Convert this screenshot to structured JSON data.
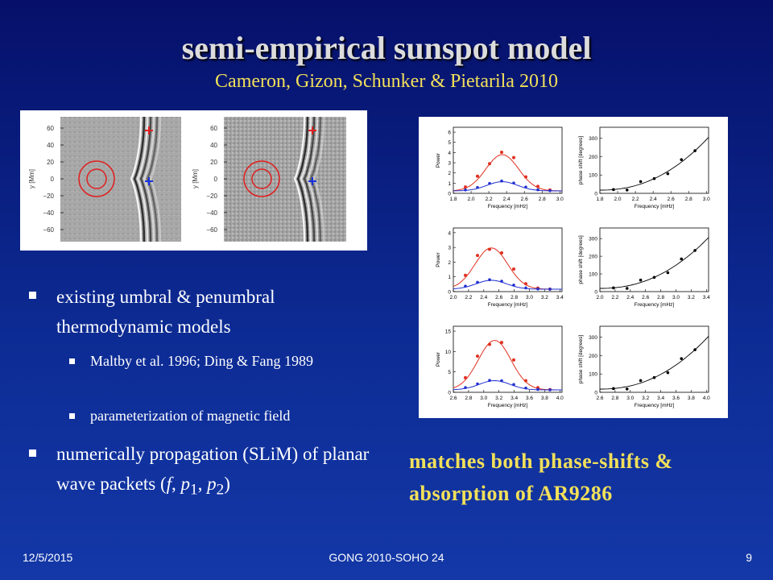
{
  "title": "semi-empirical sunspot model",
  "subtitle": "Cameron, Gizon, Schunker & Pietarila 2010",
  "left_figure": {
    "y_axis_label": "y [Mm]",
    "y_ticks": [
      "60",
      "40",
      "20",
      "0",
      "−20",
      "−40",
      "−60"
    ]
  },
  "bullets": [
    {
      "text": "existing umbral & penumbral thermodynamic models",
      "sub": [
        "Maltby et al. 1996; Ding & Fang 1989",
        "parameterization of magnetic field"
      ]
    },
    {
      "parts": [
        "numerically propagation (SLiM) of planar wave packets (",
        "f",
        ", ",
        "p",
        "1",
        ", ",
        "p",
        "2",
        ")"
      ]
    }
  ],
  "right_figure": {
    "power_label": "Power",
    "frequency_label": "Frequency [mHz]",
    "phase_label": "phase shift [degrees]",
    "rows": [
      {
        "x_ticks": [
          "1.8",
          "2.0",
          "2.2",
          "2.4",
          "2.6",
          "2.8",
          "3.0"
        ],
        "power_ticks": [
          "0",
          "1",
          "2",
          "3",
          "4",
          "5",
          "6"
        ],
        "phase_ticks": [
          "0",
          "100",
          "200",
          "300"
        ]
      },
      {
        "x_ticks": [
          "2.0",
          "2.2",
          "2.4",
          "2.6",
          "2.8",
          "3.0",
          "3.2",
          "3.4"
        ],
        "power_ticks": [
          "0",
          "1",
          "2",
          "3",
          "4"
        ],
        "phase_ticks": [
          "0",
          "100",
          "200",
          "300"
        ]
      },
      {
        "x_ticks": [
          "2.6",
          "2.8",
          "3.0",
          "3.2",
          "3.4",
          "3.6",
          "3.8",
          "4.0"
        ],
        "power_ticks": [
          "0",
          "5",
          "10",
          "15"
        ],
        "phase_ticks": [
          "0",
          "100",
          "200",
          "300"
        ]
      }
    ]
  },
  "conclusion": [
    "matches both phase-shifts &",
    "absorption of AR9286"
  ],
  "footer": {
    "date": "12/5/2015",
    "center": "GONG 2010-SOHO 24",
    "page": "9"
  }
}
